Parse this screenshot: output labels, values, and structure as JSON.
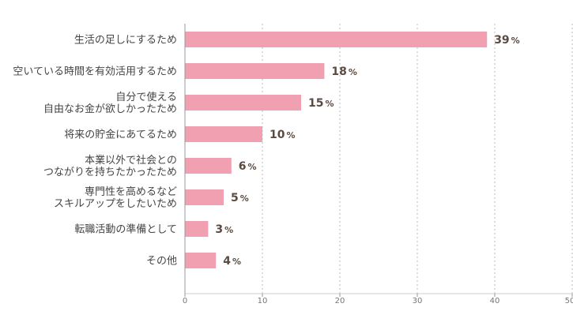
{
  "chart_data": {
    "type": "bar",
    "orientation": "horizontal",
    "title": "",
    "xlabel": "",
    "ylabel": "",
    "unit": "%",
    "xlim": [
      0,
      50
    ],
    "xticks": [
      0,
      10,
      20,
      30,
      40,
      50
    ],
    "grid": "vertical-dotted",
    "bar_color": "#f0a0b0",
    "categories": [
      [
        "生活の足しにするため"
      ],
      [
        "空いている時間を有効活用するため"
      ],
      [
        "自分で使える",
        "自由なお金が欲しかったため"
      ],
      [
        "将来の貯金にあてるため"
      ],
      [
        "本業以外で社会との",
        "つながりを持ちたかったため"
      ],
      [
        "専門性を高めるなど",
        "スキルアップをしたいため"
      ],
      [
        "転職活動の準備として"
      ],
      [
        "その他"
      ]
    ],
    "values": [
      39,
      18,
      15,
      10,
      6,
      5,
      3,
      4
    ]
  }
}
